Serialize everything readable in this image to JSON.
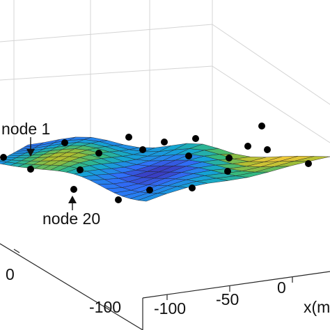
{
  "chart_data": {
    "type": "surface",
    "title": "",
    "xlabel": "x(m)",
    "ylabel": "",
    "zlabel": "",
    "grid": true,
    "x_ticks": [
      "-100",
      "-50",
      "0"
    ],
    "y_ticks": [
      "-100",
      "0"
    ],
    "colormap": [
      "#3e26a8",
      "#2f70fa",
      "#13a5d3",
      "#35b97e",
      "#a4bd32",
      "#f2c939"
    ],
    "surface_color_levels": [
      [
        0.28,
        0.34,
        0.42,
        0.5,
        0.56,
        0.62,
        0.66,
        0.64,
        0.58,
        0.52,
        0.44,
        0.36,
        0.3,
        0.26,
        0.24,
        0.24,
        0.25,
        0.27,
        0.3,
        0.33
      ],
      [
        0.3,
        0.38,
        0.48,
        0.58,
        0.66,
        0.72,
        0.74,
        0.7,
        0.62,
        0.52,
        0.42,
        0.32,
        0.26,
        0.22,
        0.2,
        0.21,
        0.23,
        0.26,
        0.3,
        0.34
      ],
      [
        0.32,
        0.42,
        0.54,
        0.66,
        0.76,
        0.82,
        0.82,
        0.76,
        0.64,
        0.5,
        0.38,
        0.28,
        0.2,
        0.16,
        0.15,
        0.17,
        0.22,
        0.28,
        0.33,
        0.37
      ],
      [
        0.32,
        0.42,
        0.56,
        0.7,
        0.8,
        0.86,
        0.84,
        0.76,
        0.62,
        0.46,
        0.32,
        0.2,
        0.12,
        0.08,
        0.08,
        0.12,
        0.2,
        0.3,
        0.38,
        0.42
      ],
      [
        0.3,
        0.4,
        0.54,
        0.68,
        0.78,
        0.82,
        0.8,
        0.7,
        0.56,
        0.4,
        0.26,
        0.14,
        0.06,
        0.04,
        0.06,
        0.14,
        0.26,
        0.38,
        0.46,
        0.48
      ],
      [
        0.28,
        0.36,
        0.48,
        0.6,
        0.68,
        0.72,
        0.7,
        0.62,
        0.5,
        0.36,
        0.24,
        0.14,
        0.08,
        0.08,
        0.14,
        0.26,
        0.4,
        0.52,
        0.56,
        0.54
      ],
      [
        0.26,
        0.32,
        0.4,
        0.48,
        0.54,
        0.58,
        0.58,
        0.52,
        0.44,
        0.34,
        0.26,
        0.2,
        0.18,
        0.22,
        0.32,
        0.46,
        0.6,
        0.68,
        0.66,
        0.6
      ],
      [
        0.24,
        0.28,
        0.32,
        0.36,
        0.4,
        0.44,
        0.44,
        0.42,
        0.38,
        0.34,
        0.32,
        0.32,
        0.36,
        0.44,
        0.56,
        0.7,
        0.82,
        0.86,
        0.8,
        0.68
      ],
      [
        0.22,
        0.24,
        0.26,
        0.28,
        0.3,
        0.32,
        0.34,
        0.34,
        0.34,
        0.36,
        0.4,
        0.46,
        0.54,
        0.64,
        0.76,
        0.88,
        0.96,
        0.98,
        0.9,
        0.76
      ],
      [
        0.2,
        0.22,
        0.22,
        0.22,
        0.24,
        0.26,
        0.28,
        0.3,
        0.34,
        0.4,
        0.46,
        0.54,
        0.64,
        0.74,
        0.86,
        0.94,
        1.0,
        1.0,
        0.94,
        0.8
      ]
    ],
    "annotations": [
      {
        "text": "node 1"
      },
      {
        "text": "node 20"
      }
    ]
  }
}
